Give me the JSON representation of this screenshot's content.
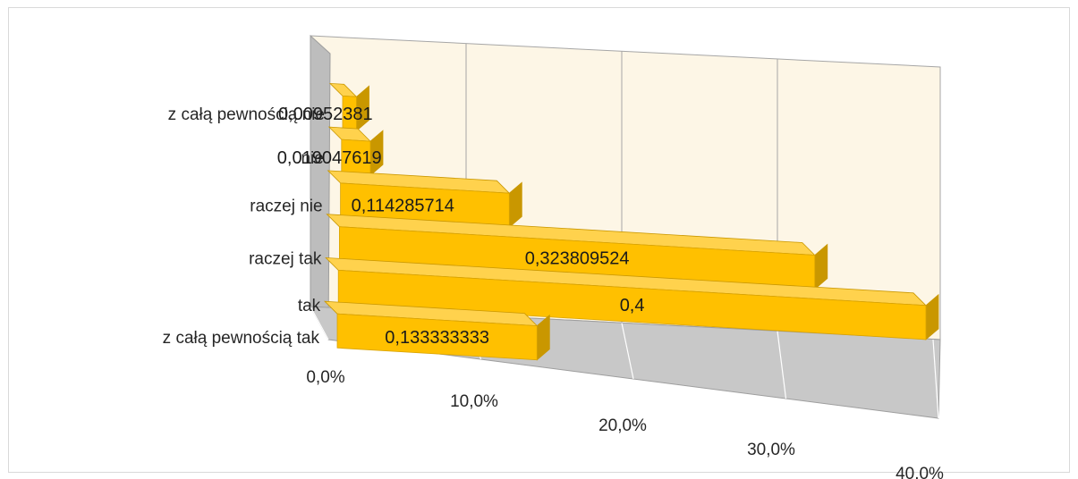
{
  "chart_data": {
    "type": "bar",
    "orientation": "horizontal",
    "style": "3d",
    "categories": [
      "z całą pewnością tak",
      "tak",
      "raczej tak",
      "raczej nie",
      "nie",
      "z całą pewnością nie"
    ],
    "values": [
      0.133333333,
      0.4,
      0.323809524,
      0.114285714,
      0.019047619,
      0.00952381
    ],
    "data_labels": [
      "0,133333333",
      "0,4",
      "0,323809524",
      "0,114285714",
      "0,019047619",
      "0,00952381"
    ],
    "x_ticks": [
      "0,0%",
      "10,0%",
      "20,0%",
      "30,0%",
      "40,0%"
    ],
    "xlim": [
      0,
      0.4
    ],
    "grid": true,
    "legend": "none",
    "colors": {
      "bar_front": "#ffc000",
      "bar_top": "#ffd24d",
      "bar_side": "#c99700",
      "back_wall": "#fdf6e6",
      "side_wall": "#bdbdbd",
      "floor": "#c8c8c8",
      "gridline": "#a6a6a6"
    }
  }
}
